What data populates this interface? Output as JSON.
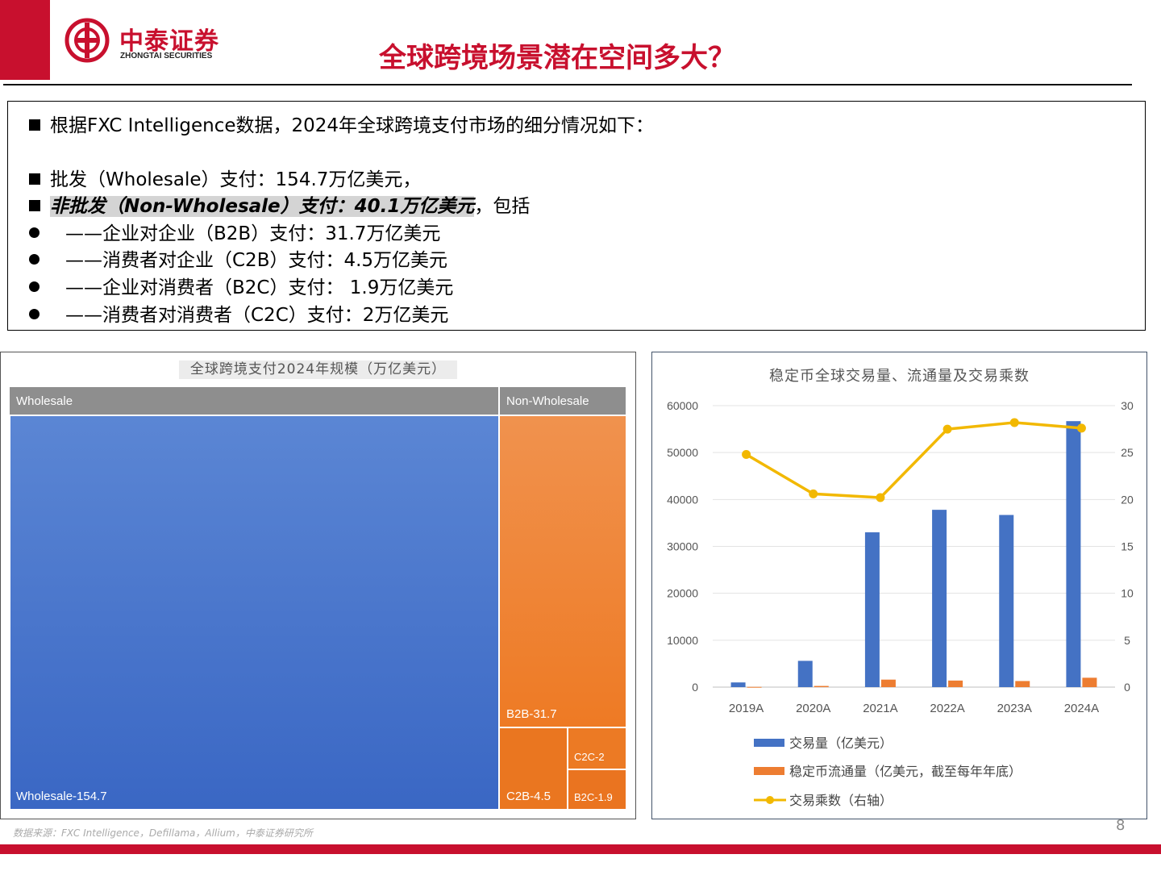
{
  "header": {
    "logo_name": "中泰证券",
    "logo_en": "ZHONGTAI SECURITIES",
    "title": "全球跨境场景潜在空间多大？"
  },
  "text_box": {
    "line1": "根据FXC Intelligence数据，2024年全球跨境支付市场的细分情况如下：",
    "line2": "批发（Wholesale）支付：154.7万亿美元，",
    "line3_highlight": "非批发（Non-Wholesale）支付：40.1万亿美元",
    "line3_suffix": "，包括",
    "bullets": [
      "——企业对企业（B2B）支付：31.7万亿美元",
      "——消费者对企业（C2B）支付：4.5万亿美元",
      "——企业对消费者（B2C）支付： 1.9万亿美元",
      "——消费者对消费者（C2C）支付：2万亿美元"
    ]
  },
  "colors": {
    "brand": "#c8102e",
    "blue": "#4472c4",
    "orange": "#ed7d31",
    "yellow": "#f2b800",
    "header_gray": "#8e8e8e"
  },
  "chart_data": [
    {
      "type": "treemap",
      "title": "全球跨境支付2024年规模（万亿美元）",
      "groups": [
        {
          "name": "Wholesale",
          "children": [
            {
              "label": "Wholesale-154.7",
              "value": 154.7
            }
          ]
        },
        {
          "name": "Non-Wholesale",
          "children": [
            {
              "label": "B2B-31.7",
              "value": 31.7
            },
            {
              "label": "C2B-4.5",
              "value": 4.5
            },
            {
              "label": "C2C-2",
              "value": 2
            },
            {
              "label": "B2C-1.9",
              "value": 1.9
            }
          ]
        }
      ]
    },
    {
      "type": "bar+line",
      "title": "稳定币全球交易量、流通量及交易乘数",
      "categories": [
        "2019A",
        "2020A",
        "2021A",
        "2022A",
        "2023A",
        "2024A"
      ],
      "y_left": {
        "range": [
          0,
          60000
        ],
        "ticks": [
          "0",
          "10000",
          "20000",
          "30000",
          "40000",
          "50000",
          "60000"
        ]
      },
      "y_right": {
        "range": [
          0,
          30
        ],
        "ticks": [
          "0",
          "5",
          "10",
          "15",
          "20",
          "25",
          "30"
        ]
      },
      "grid": true,
      "legend_position": "bottom",
      "series": [
        {
          "name": "交易量（亿美元）",
          "type": "bar",
          "axis": "left",
          "color": "#4472c4",
          "values": [
            1000,
            5600,
            33000,
            37800,
            36700,
            56700
          ]
        },
        {
          "name": "稳定币流通量（亿美元，截至每年年底）",
          "type": "bar",
          "axis": "left",
          "color": "#ed7d31",
          "values": [
            50,
            250,
            1600,
            1400,
            1300,
            2000
          ]
        },
        {
          "name": "交易乘数（右轴）",
          "type": "line",
          "axis": "right",
          "color": "#f2b800",
          "values": [
            24.8,
            20.6,
            20.2,
            27.5,
            28.2,
            27.6
          ]
        }
      ]
    }
  ],
  "footer": {
    "source": "数据来源：FXC Intelligence，Defillama，Allium，中泰证券研究所",
    "page": "8"
  }
}
